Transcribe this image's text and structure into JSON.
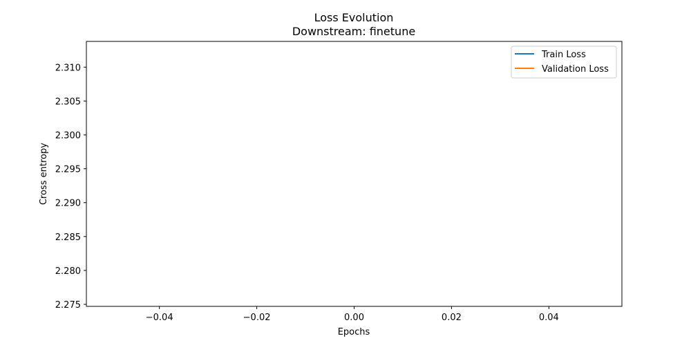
{
  "chart_data": {
    "type": "line",
    "title": "Loss Evolution",
    "subtitle": "Downstream: finetune",
    "xlabel": "Epochs",
    "ylabel": "Cross entropy",
    "xlim": [
      -0.055,
      0.055
    ],
    "ylim": [
      2.2747,
      2.3138
    ],
    "xticks": [
      -0.04,
      -0.02,
      0.0,
      0.02,
      0.04
    ],
    "xtick_labels": [
      "−0.04",
      "−0.02",
      "0.00",
      "0.02",
      "0.04"
    ],
    "yticks": [
      2.275,
      2.28,
      2.285,
      2.29,
      2.295,
      2.3,
      2.305,
      2.31
    ],
    "ytick_labels": [
      "2.275",
      "2.280",
      "2.285",
      "2.290",
      "2.295",
      "2.300",
      "2.305",
      "2.310"
    ],
    "grid": false,
    "legend_position": "top-right",
    "series": [
      {
        "name": "Train Loss",
        "color": "#1f77b4",
        "x": [
          0
        ],
        "values": [
          null
        ]
      },
      {
        "name": "Validation Loss",
        "color": "#ff7f0e",
        "x": [
          0
        ],
        "values": [
          null
        ]
      }
    ]
  }
}
